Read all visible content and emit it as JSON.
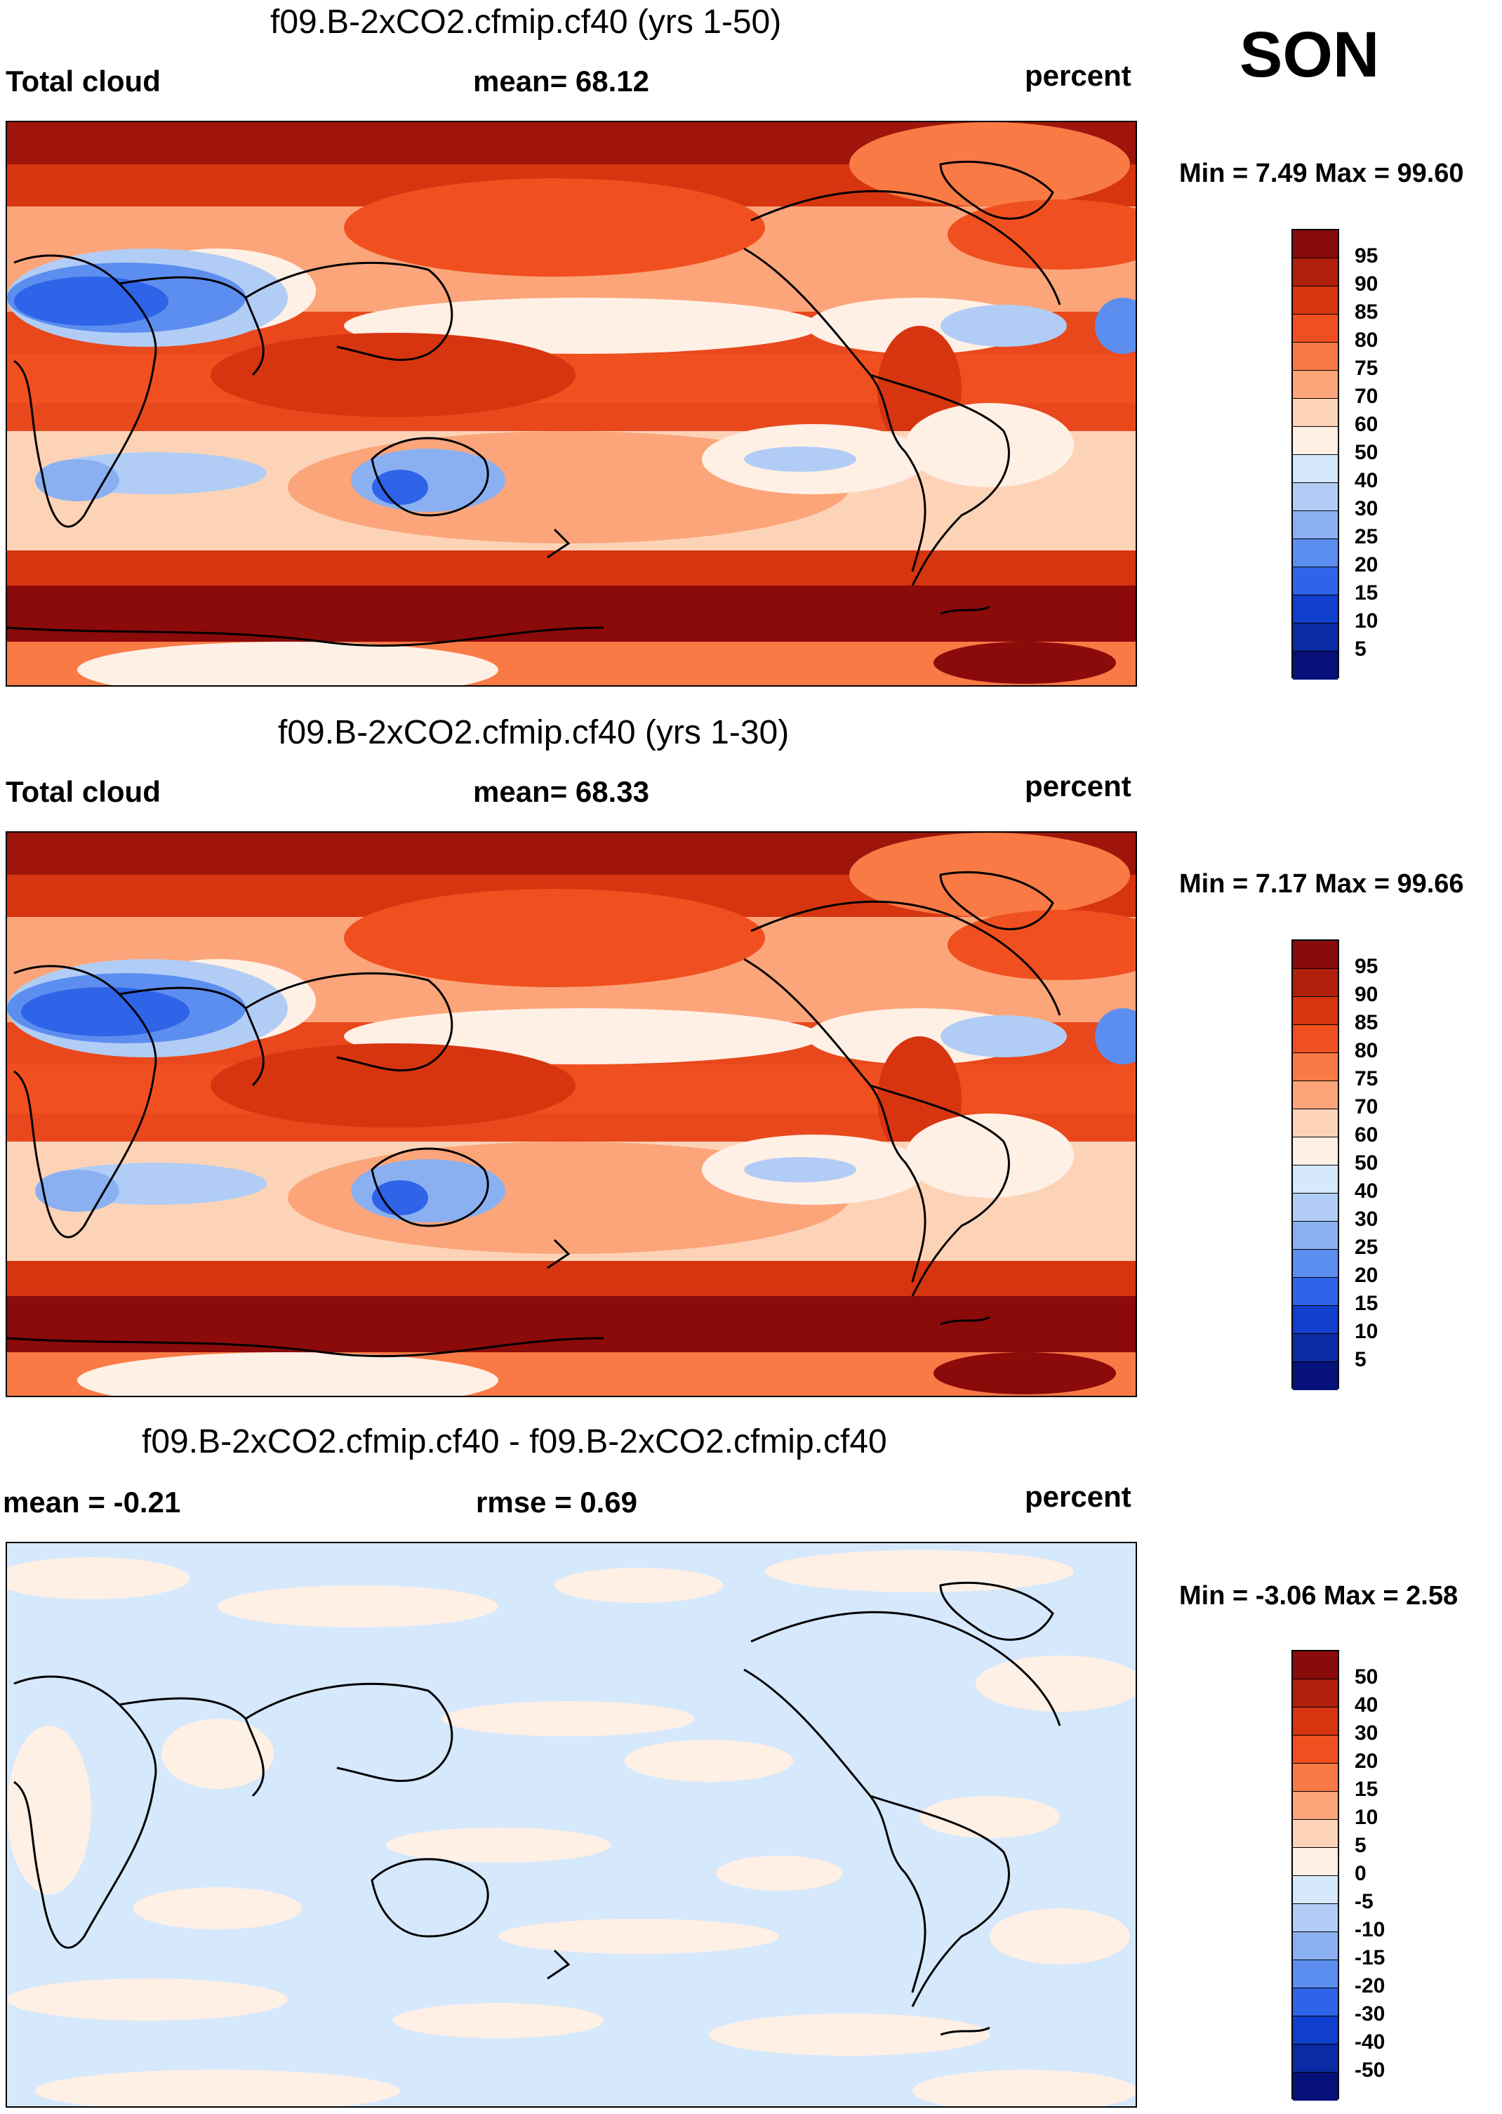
{
  "season": "SON",
  "units": "percent",
  "panels": [
    {
      "title": "f09.B-2xCO2.cfmip.cf40 (yrs 1-50)",
      "left_label": "Total cloud",
      "center_label": "mean=  68.12",
      "right_label": "percent",
      "minmax": "Min =   7.49 Max =  99.60"
    },
    {
      "title": "f09.B-2xCO2.cfmip.cf40 (yrs 1-30)",
      "left_label": "Total cloud",
      "center_label": "mean=  68.33",
      "right_label": "percent",
      "minmax": "Min =   7.17 Max =  99.66"
    },
    {
      "title": "f09.B-2xCO2.cfmip.cf40 - f09.B-2xCO2.cfmip.cf40",
      "left_label": "mean =  -0.21",
      "center_label": "rmse =   0.69",
      "right_label": "percent",
      "minmax": "Min =  -3.06 Max =   2.58"
    }
  ],
  "colorbar_abs": {
    "labels": [
      "95",
      "90",
      "85",
      "80",
      "75",
      "70",
      "60",
      "50",
      "40",
      "30",
      "25",
      "20",
      "15",
      "10",
      "5"
    ],
    "colors": [
      "#8b0a0a",
      "#b0200c",
      "#d63510",
      "#f0501f",
      "#f97a45",
      "#fca57a",
      "#fdd3b8",
      "#fff0e6",
      "#d6e8fb",
      "#b1cdf6",
      "#8ab0f1",
      "#5c8ef0",
      "#2f63e8",
      "#0f3fcc",
      "#0a2ba3",
      "#07117a"
    ]
  },
  "colorbar_diff": {
    "labels": [
      "50",
      "40",
      "30",
      "20",
      "15",
      "10",
      "5",
      "0",
      "-5",
      "-10",
      "-15",
      "-20",
      "-30",
      "-40",
      "-50"
    ],
    "colors": [
      "#8b0a0a",
      "#b0200c",
      "#d63510",
      "#f0501f",
      "#f97a45",
      "#fca57a",
      "#fdd3b8",
      "#fff0e6",
      "#d6e8fb",
      "#b1cdf6",
      "#8ab0f1",
      "#5c8ef0",
      "#2f63e8",
      "#0f3fcc",
      "#0a2ba3",
      "#07117a"
    ]
  }
}
